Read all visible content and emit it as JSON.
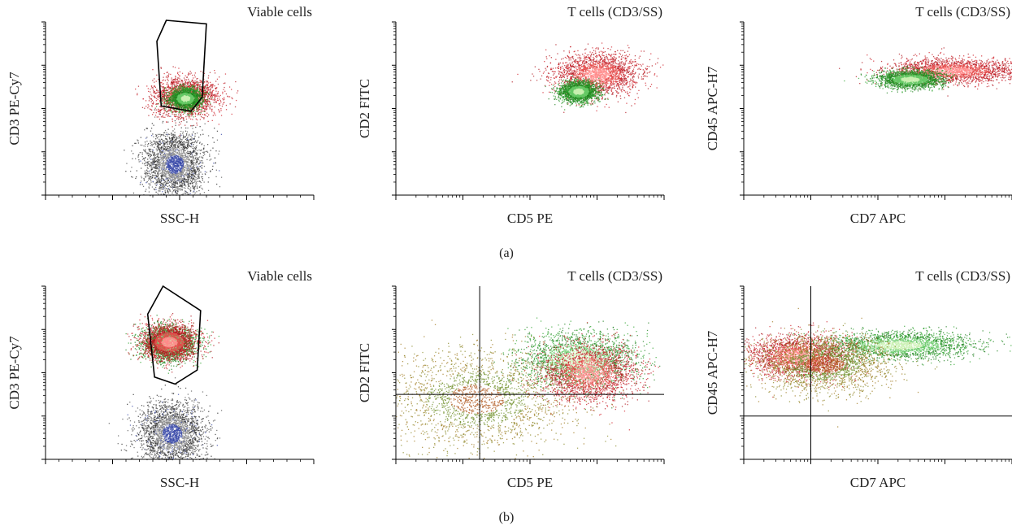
{
  "figure": {
    "row_labels": [
      "(a)",
      "(b)"
    ]
  },
  "colors": {
    "gated_red": "#d0202a",
    "gated_green": "#2ea32e",
    "gated_olive": "#8a8a2a",
    "ungated_gray": "#2a2a2a",
    "ungated_blue": "#3a4aa8",
    "gate_line": "#000000"
  },
  "chart_data": [
    {
      "id": "a1",
      "row": "(a)",
      "type": "scatter",
      "title": "Viable cells",
      "xlabel": "SSC-H",
      "ylabel": "CD3 PE-Cy7",
      "x_scale": "linear",
      "y_scale": "log",
      "y_decades": 4,
      "gate": {
        "type": "polygon",
        "label": "T cells (CD3/SS)"
      },
      "populations": [
        {
          "name": "",
          "color": "red",
          "center": [
            0.52,
            0.57
          ],
          "spread": [
            0.06,
            0.055
          ]
        },
        {
          "name": "",
          "color": "green",
          "center": [
            0.52,
            0.56
          ],
          "spread": [
            0.03,
            0.03
          ]
        },
        {
          "name": "",
          "color": "gray",
          "center": [
            0.48,
            0.18
          ],
          "spread": [
            0.055,
            0.09
          ]
        }
      ]
    },
    {
      "id": "a2",
      "row": "(a)",
      "type": "scatter",
      "title": "T cells (CD3/SS)",
      "xlabel": "CD5 PE",
      "ylabel": "CD2 FITC",
      "x_scale": "log",
      "y_scale": "log",
      "x_decades": 4,
      "y_decades": 4,
      "populations": [
        {
          "name": "",
          "color": "red",
          "center": [
            0.75,
            0.7
          ],
          "spread": [
            0.08,
            0.06
          ]
        },
        {
          "name": "",
          "color": "green",
          "center": [
            0.68,
            0.6
          ],
          "spread": [
            0.035,
            0.03
          ]
        }
      ]
    },
    {
      "id": "a3",
      "row": "(a)",
      "type": "scatter",
      "title": "T cells (CD3/SS)",
      "xlabel": "CD7 APC",
      "ylabel": "CD45 APC-H7",
      "x_scale": "log",
      "y_scale": "log",
      "x_decades": 4,
      "y_decades": 4,
      "populations": [
        {
          "name": "",
          "color": "red",
          "center": [
            0.78,
            0.72
          ],
          "spread": [
            0.12,
            0.035
          ]
        },
        {
          "name": "",
          "color": "green",
          "center": [
            0.62,
            0.67
          ],
          "spread": [
            0.06,
            0.025
          ]
        }
      ]
    },
    {
      "id": "b1",
      "row": "(b)",
      "type": "scatter",
      "title": "Viable cells",
      "xlabel": "SSC-H",
      "ylabel": "CD3 PE-Cy7",
      "x_scale": "linear",
      "y_scale": "log",
      "y_decades": 4,
      "gate": {
        "type": "polygon",
        "label": "T cells (CD3/SS)"
      },
      "populations": [
        {
          "name": "",
          "color": "green",
          "center": [
            0.46,
            0.67
          ],
          "spread": [
            0.05,
            0.05
          ]
        },
        {
          "name": "",
          "color": "red",
          "center": [
            0.46,
            0.68
          ],
          "spread": [
            0.05,
            0.05
          ]
        },
        {
          "name": "",
          "color": "gray",
          "center": [
            0.47,
            0.15
          ],
          "spread": [
            0.06,
            0.09
          ]
        }
      ]
    },
    {
      "id": "b2",
      "row": "(b)",
      "type": "scatter",
      "title": "T cells (CD3/SS)",
      "xlabel": "CD5 PE",
      "ylabel": "CD2 FITC",
      "x_scale": "log",
      "y_scale": "log",
      "x_decades": 4,
      "y_decades": 4,
      "quadrant": {
        "x": 1.25,
        "y": 1.5
      },
      "populations": [
        {
          "name": "",
          "color": "green",
          "center": [
            0.68,
            0.58
          ],
          "spread": [
            0.11,
            0.08
          ]
        },
        {
          "name": "",
          "color": "red",
          "center": [
            0.72,
            0.5
          ],
          "spread": [
            0.09,
            0.08
          ]
        },
        {
          "name": "",
          "color": "olive",
          "center": [
            0.3,
            0.35
          ],
          "spread": [
            0.17,
            0.14
          ]
        }
      ]
    },
    {
      "id": "b3",
      "row": "(b)",
      "type": "scatter",
      "title": "T cells (CD3/SS)",
      "xlabel": "CD7 APC",
      "ylabel": "CD45 APC-H7",
      "x_scale": "log",
      "y_scale": "log",
      "x_decades": 4,
      "y_decades": 4,
      "quadrant": {
        "x": 1.0,
        "y": 1.0
      },
      "populations": [
        {
          "name": "",
          "color": "green",
          "center": [
            0.58,
            0.66
          ],
          "spread": [
            0.14,
            0.04
          ]
        },
        {
          "name": "",
          "color": "red",
          "center": [
            0.2,
            0.6
          ],
          "spread": [
            0.09,
            0.06
          ]
        },
        {
          "name": "",
          "color": "olive",
          "center": [
            0.3,
            0.55
          ],
          "spread": [
            0.12,
            0.08
          ]
        }
      ]
    }
  ]
}
